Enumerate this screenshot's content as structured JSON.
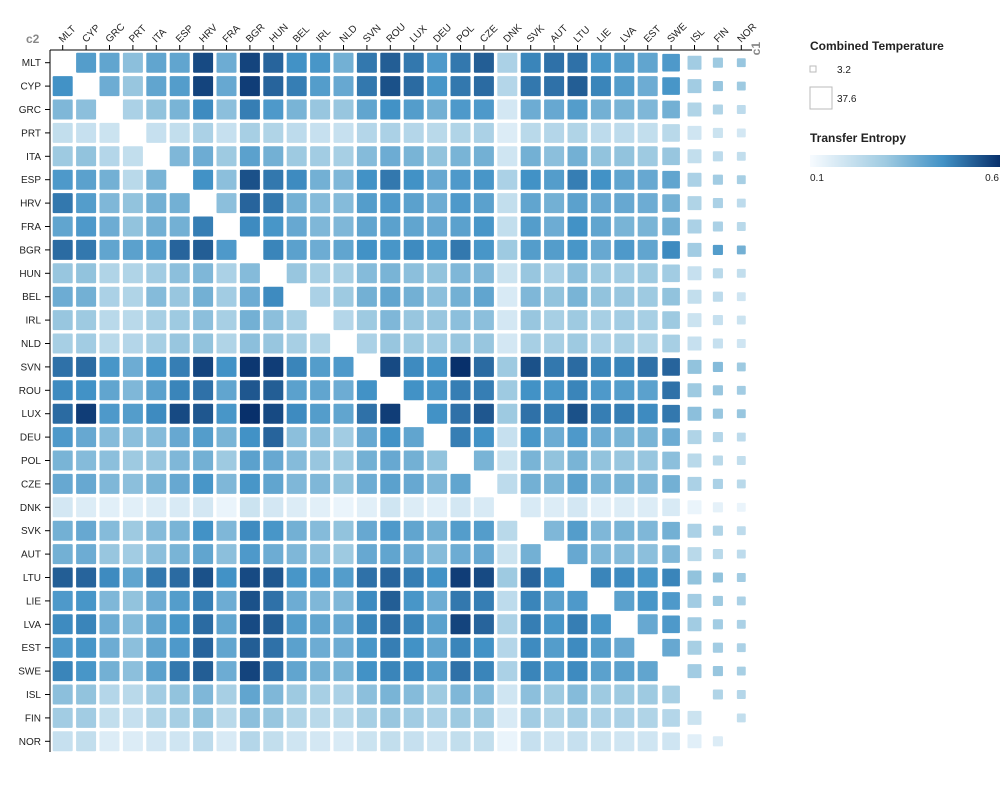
{
  "chart_data": {
    "type": "heatmap",
    "x_axis_name": "c1",
    "y_axis_name": "c2",
    "columns": [
      "MLT",
      "CYP",
      "GRC",
      "PRT",
      "ITA",
      "ESP",
      "HRV",
      "FRA",
      "BGR",
      "HUN",
      "BEL",
      "IRL",
      "NLD",
      "SVN",
      "ROU",
      "LUX",
      "DEU",
      "POL",
      "CZE",
      "DNK",
      "SVK",
      "AUT",
      "LTU",
      "LIE",
      "LVA",
      "EST",
      "SWE",
      "ISL",
      "FIN",
      "NOR"
    ],
    "rows": [
      "MLT",
      "CYP",
      "GRC",
      "PRT",
      "ITA",
      "ESP",
      "HRV",
      "FRA",
      "BGR",
      "HUN",
      "BEL",
      "IRL",
      "NLD",
      "SVN",
      "ROU",
      "LUX",
      "DEU",
      "POL",
      "CZE",
      "DNK",
      "SVK",
      "AUT",
      "LTU",
      "LIE",
      "LVA",
      "EST",
      "SWE",
      "ISL",
      "FIN",
      "NOR"
    ],
    "transfer_entropy": [
      [
        null,
        0.42,
        0.4,
        0.33,
        0.4,
        0.4,
        0.56,
        0.38,
        0.57,
        0.52,
        0.45,
        0.44,
        0.37,
        0.49,
        0.53,
        0.49,
        0.43,
        0.49,
        0.53,
        0.27,
        0.47,
        0.5,
        0.5,
        0.44,
        0.42,
        0.4,
        0.43,
        0.29,
        0.3,
        0.31
      ],
      [
        0.45,
        null,
        0.38,
        0.31,
        0.4,
        0.42,
        0.57,
        0.39,
        0.58,
        0.52,
        0.48,
        0.42,
        0.39,
        0.49,
        0.55,
        0.51,
        0.44,
        0.49,
        0.51,
        0.25,
        0.49,
        0.5,
        0.53,
        0.47,
        0.42,
        0.38,
        0.44,
        0.29,
        0.31,
        0.3
      ],
      [
        0.35,
        0.33,
        null,
        0.27,
        0.32,
        0.36,
        0.46,
        0.33,
        0.48,
        0.43,
        0.36,
        0.31,
        0.31,
        0.4,
        0.45,
        0.42,
        0.37,
        0.43,
        0.43,
        0.18,
        0.38,
        0.39,
        0.42,
        0.37,
        0.36,
        0.35,
        0.37,
        0.26,
        0.26,
        0.23
      ],
      [
        0.22,
        0.21,
        0.2,
        null,
        0.21,
        0.22,
        0.27,
        0.21,
        0.28,
        0.26,
        0.23,
        0.21,
        0.21,
        0.25,
        0.27,
        0.25,
        0.24,
        0.26,
        0.27,
        0.16,
        0.24,
        0.25,
        0.26,
        0.23,
        0.23,
        0.22,
        0.24,
        0.19,
        0.2,
        0.18
      ],
      [
        0.3,
        0.32,
        0.25,
        0.22,
        null,
        0.35,
        0.38,
        0.3,
        0.41,
        0.37,
        0.3,
        0.29,
        0.28,
        0.34,
        0.38,
        0.36,
        0.32,
        0.36,
        0.37,
        0.19,
        0.37,
        0.33,
        0.37,
        0.32,
        0.32,
        0.3,
        0.31,
        0.22,
        0.23,
        0.22
      ],
      [
        0.43,
        0.41,
        0.37,
        0.24,
        0.36,
        null,
        0.45,
        0.33,
        0.55,
        0.49,
        0.46,
        0.37,
        0.35,
        0.45,
        0.49,
        0.45,
        0.39,
        0.43,
        0.44,
        0.27,
        0.45,
        0.42,
        0.48,
        0.45,
        0.4,
        0.39,
        0.4,
        0.27,
        0.29,
        0.28
      ],
      [
        0.49,
        0.42,
        0.35,
        0.32,
        0.37,
        0.37,
        null,
        0.33,
        0.52,
        0.49,
        0.37,
        0.34,
        0.34,
        0.42,
        0.43,
        0.41,
        0.38,
        0.43,
        0.41,
        0.22,
        0.4,
        0.37,
        0.41,
        0.39,
        0.39,
        0.38,
        0.37,
        0.26,
        0.27,
        0.23
      ],
      [
        0.4,
        0.43,
        0.38,
        0.32,
        0.37,
        0.37,
        0.48,
        null,
        0.46,
        0.44,
        0.39,
        0.35,
        0.35,
        0.4,
        0.41,
        0.4,
        0.39,
        0.41,
        0.44,
        0.22,
        0.42,
        0.38,
        0.45,
        0.4,
        0.36,
        0.36,
        0.37,
        0.27,
        0.27,
        0.24
      ],
      [
        0.51,
        0.49,
        0.4,
        0.41,
        0.42,
        0.52,
        0.53,
        0.43,
        null,
        0.47,
        0.41,
        0.38,
        0.4,
        0.45,
        0.44,
        0.46,
        0.44,
        0.49,
        0.44,
        0.3,
        0.42,
        0.42,
        0.44,
        0.39,
        0.43,
        0.4,
        0.46,
        0.29,
        0.42,
        0.37
      ],
      [
        0.31,
        0.32,
        0.26,
        0.26,
        0.29,
        0.33,
        0.35,
        0.27,
        0.34,
        null,
        0.31,
        0.28,
        0.28,
        0.34,
        0.36,
        0.33,
        0.32,
        0.35,
        0.35,
        0.2,
        0.31,
        0.27,
        0.33,
        0.3,
        0.29,
        0.3,
        0.29,
        0.21,
        0.24,
        0.22
      ],
      [
        0.38,
        0.37,
        0.27,
        0.26,
        0.34,
        0.31,
        0.37,
        0.29,
        0.38,
        0.46,
        null,
        0.27,
        0.3,
        0.37,
        0.4,
        0.37,
        0.33,
        0.37,
        0.4,
        0.17,
        0.35,
        0.32,
        0.36,
        0.32,
        0.31,
        0.3,
        0.32,
        0.22,
        0.23,
        0.19
      ],
      [
        0.31,
        0.3,
        0.24,
        0.24,
        0.28,
        0.3,
        0.33,
        0.28,
        0.37,
        0.33,
        0.28,
        null,
        0.25,
        0.3,
        0.35,
        0.31,
        0.31,
        0.33,
        0.33,
        0.18,
        0.31,
        0.28,
        0.3,
        0.28,
        0.29,
        0.28,
        0.3,
        0.2,
        0.21,
        0.2
      ],
      [
        0.28,
        0.29,
        0.24,
        0.25,
        0.28,
        0.31,
        0.32,
        0.26,
        0.33,
        0.31,
        0.28,
        0.26,
        null,
        0.27,
        0.31,
        0.3,
        0.29,
        0.31,
        0.31,
        0.18,
        0.28,
        0.28,
        0.3,
        0.27,
        0.28,
        0.26,
        0.28,
        0.21,
        0.21,
        0.19
      ],
      [
        0.5,
        0.51,
        0.44,
        0.38,
        0.45,
        0.48,
        0.57,
        0.45,
        0.59,
        0.58,
        0.47,
        0.42,
        0.43,
        null,
        0.56,
        0.46,
        0.45,
        0.6,
        0.51,
        0.3,
        0.55,
        0.49,
        0.51,
        0.47,
        0.47,
        0.5,
        0.52,
        0.32,
        0.34,
        0.3
      ],
      [
        0.46,
        0.45,
        0.4,
        0.35,
        0.41,
        0.47,
        0.5,
        0.4,
        0.54,
        0.53,
        0.41,
        0.4,
        0.38,
        0.45,
        null,
        0.45,
        0.44,
        0.48,
        0.48,
        0.3,
        0.45,
        0.44,
        0.47,
        0.43,
        0.42,
        0.41,
        0.5,
        0.3,
        0.31,
        0.29
      ],
      [
        0.51,
        0.58,
        0.43,
        0.42,
        0.46,
        0.56,
        0.54,
        0.44,
        0.6,
        0.56,
        0.46,
        0.42,
        0.4,
        0.5,
        0.58,
        null,
        0.45,
        0.5,
        0.54,
        0.3,
        0.5,
        0.48,
        0.55,
        0.48,
        0.48,
        0.46,
        0.49,
        0.33,
        0.31,
        0.31
      ],
      [
        0.43,
        0.39,
        0.34,
        0.33,
        0.34,
        0.39,
        0.42,
        0.36,
        0.45,
        0.52,
        0.33,
        0.33,
        0.29,
        0.39,
        0.45,
        0.4,
        null,
        0.48,
        0.45,
        0.21,
        0.44,
        0.38,
        0.43,
        0.38,
        0.36,
        0.36,
        0.38,
        0.26,
        0.25,
        0.23
      ],
      [
        0.36,
        0.34,
        0.33,
        0.3,
        0.31,
        0.35,
        0.37,
        0.3,
        0.41,
        0.39,
        0.34,
        0.31,
        0.3,
        0.37,
        0.39,
        0.37,
        0.32,
        null,
        0.36,
        0.2,
        0.36,
        0.32,
        0.36,
        0.32,
        0.31,
        0.31,
        0.33,
        0.24,
        0.24,
        0.22
      ],
      [
        0.39,
        0.39,
        0.35,
        0.33,
        0.36,
        0.39,
        0.44,
        0.35,
        0.44,
        0.4,
        0.35,
        0.35,
        0.32,
        0.38,
        0.41,
        0.39,
        0.35,
        0.4,
        null,
        0.23,
        0.37,
        0.36,
        0.41,
        0.36,
        0.36,
        0.35,
        0.37,
        0.27,
        0.27,
        0.24
      ],
      [
        0.18,
        0.16,
        0.15,
        0.15,
        0.16,
        0.17,
        0.18,
        0.13,
        0.2,
        0.18,
        0.16,
        0.15,
        0.13,
        0.15,
        0.19,
        0.16,
        0.15,
        0.18,
        0.17,
        null,
        0.17,
        0.16,
        0.18,
        0.15,
        0.16,
        0.16,
        0.17,
        0.13,
        0.14,
        0.13
      ],
      [
        0.37,
        0.39,
        0.34,
        0.3,
        0.34,
        0.36,
        0.45,
        0.35,
        0.46,
        0.44,
        0.37,
        0.34,
        0.32,
        0.39,
        0.43,
        0.4,
        0.37,
        0.42,
        0.42,
        0.24,
        null,
        0.35,
        0.42,
        0.35,
        0.36,
        0.35,
        0.37,
        0.27,
        0.26,
        0.23
      ],
      [
        0.37,
        0.38,
        0.31,
        0.29,
        0.33,
        0.36,
        0.4,
        0.33,
        0.43,
        0.38,
        0.35,
        0.33,
        0.3,
        0.39,
        0.4,
        0.38,
        0.34,
        0.38,
        0.39,
        0.2,
        0.37,
        null,
        0.39,
        0.35,
        0.34,
        0.33,
        0.35,
        0.24,
        0.24,
        0.23
      ],
      [
        0.53,
        0.52,
        0.46,
        0.4,
        0.49,
        0.51,
        0.55,
        0.45,
        0.56,
        0.54,
        0.44,
        0.43,
        0.42,
        0.5,
        0.52,
        0.48,
        0.45,
        0.58,
        0.56,
        0.3,
        0.52,
        0.45,
        null,
        0.47,
        0.46,
        0.44,
        0.47,
        0.32,
        0.32,
        0.29
      ],
      [
        0.43,
        0.44,
        0.35,
        0.32,
        0.38,
        0.42,
        0.48,
        0.38,
        0.55,
        0.5,
        0.38,
        0.35,
        0.35,
        0.46,
        0.53,
        0.44,
        0.38,
        0.49,
        0.48,
        0.23,
        0.47,
        0.41,
        0.43,
        null,
        0.41,
        0.44,
        0.43,
        0.29,
        0.3,
        0.27
      ],
      [
        0.46,
        0.47,
        0.38,
        0.34,
        0.4,
        0.44,
        0.51,
        0.4,
        0.56,
        0.53,
        0.42,
        0.4,
        0.39,
        0.47,
        0.51,
        0.47,
        0.41,
        0.57,
        0.52,
        0.27,
        0.48,
        0.44,
        0.48,
        0.44,
        null,
        0.39,
        0.43,
        0.29,
        0.29,
        0.27
      ],
      [
        0.43,
        0.44,
        0.38,
        0.33,
        0.4,
        0.43,
        0.52,
        0.4,
        0.53,
        0.5,
        0.41,
        0.38,
        0.38,
        0.44,
        0.48,
        0.45,
        0.4,
        0.47,
        0.45,
        0.25,
        0.46,
        0.42,
        0.46,
        0.42,
        0.39,
        null,
        0.39,
        0.28,
        0.29,
        0.27
      ],
      [
        0.47,
        0.44,
        0.37,
        0.33,
        0.41,
        0.49,
        0.53,
        0.38,
        0.57,
        0.5,
        0.4,
        0.37,
        0.36,
        0.45,
        0.47,
        0.46,
        0.42,
        0.5,
        0.47,
        0.27,
        0.47,
        0.43,
        0.46,
        0.41,
        0.41,
        0.4,
        null,
        0.29,
        0.31,
        0.28
      ],
      [
        0.33,
        0.32,
        0.25,
        0.24,
        0.29,
        0.32,
        0.35,
        0.28,
        0.4,
        0.35,
        0.3,
        0.28,
        0.27,
        0.33,
        0.36,
        0.34,
        0.3,
        0.35,
        0.34,
        0.19,
        0.33,
        0.3,
        0.34,
        0.3,
        0.3,
        0.3,
        0.28,
        null,
        0.26,
        0.25
      ],
      [
        0.29,
        0.29,
        0.22,
        0.21,
        0.26,
        0.28,
        0.32,
        0.24,
        0.33,
        0.31,
        0.26,
        0.24,
        0.24,
        0.28,
        0.31,
        0.29,
        0.27,
        0.3,
        0.3,
        0.17,
        0.29,
        0.26,
        0.29,
        0.27,
        0.27,
        0.26,
        0.25,
        0.2,
        null,
        0.22
      ],
      [
        0.21,
        0.22,
        0.16,
        0.16,
        0.18,
        0.19,
        0.23,
        0.17,
        0.25,
        0.22,
        0.19,
        0.18,
        0.17,
        0.2,
        0.22,
        0.21,
        0.19,
        0.22,
        0.22,
        0.13,
        0.21,
        0.19,
        0.21,
        0.2,
        0.19,
        0.19,
        0.19,
        0.15,
        0.16,
        null
      ]
    ],
    "combined_temperature": {
      "rows": [
        37.6,
        37.6,
        37.6,
        37.6,
        37.6,
        37.6,
        37.6,
        37.6,
        37.6,
        37.6,
        37.6,
        37.6,
        37.6,
        37.6,
        37.6,
        37.6,
        37.6,
        37.6,
        37.6,
        37.6,
        37.6,
        37.6,
        37.6,
        37.6,
        37.6,
        37.6,
        37.6,
        37.6,
        37.6,
        37.6
      ],
      "columns": [
        37.6,
        37.6,
        37.6,
        37.6,
        37.6,
        37.6,
        37.6,
        37.6,
        37.6,
        37.6,
        37.6,
        37.6,
        37.6,
        37.6,
        37.6,
        37.6,
        37.6,
        37.6,
        37.6,
        37.6,
        37.6,
        37.6,
        37.6,
        37.6,
        37.6,
        37.6,
        30,
        20,
        12,
        10
      ]
    },
    "size_legend": {
      "title": "Combined Temperature",
      "min_label": "3.2",
      "max_label": "37.6",
      "min": 3.2,
      "max": 37.6
    },
    "color_legend": {
      "title": "Transfer Entropy",
      "min_label": "0.1",
      "max_label": "0.6",
      "min": 0.1,
      "max": 0.6,
      "color_low": "#f7fbff",
      "color_high": "#08306b"
    },
    "grid": false
  }
}
